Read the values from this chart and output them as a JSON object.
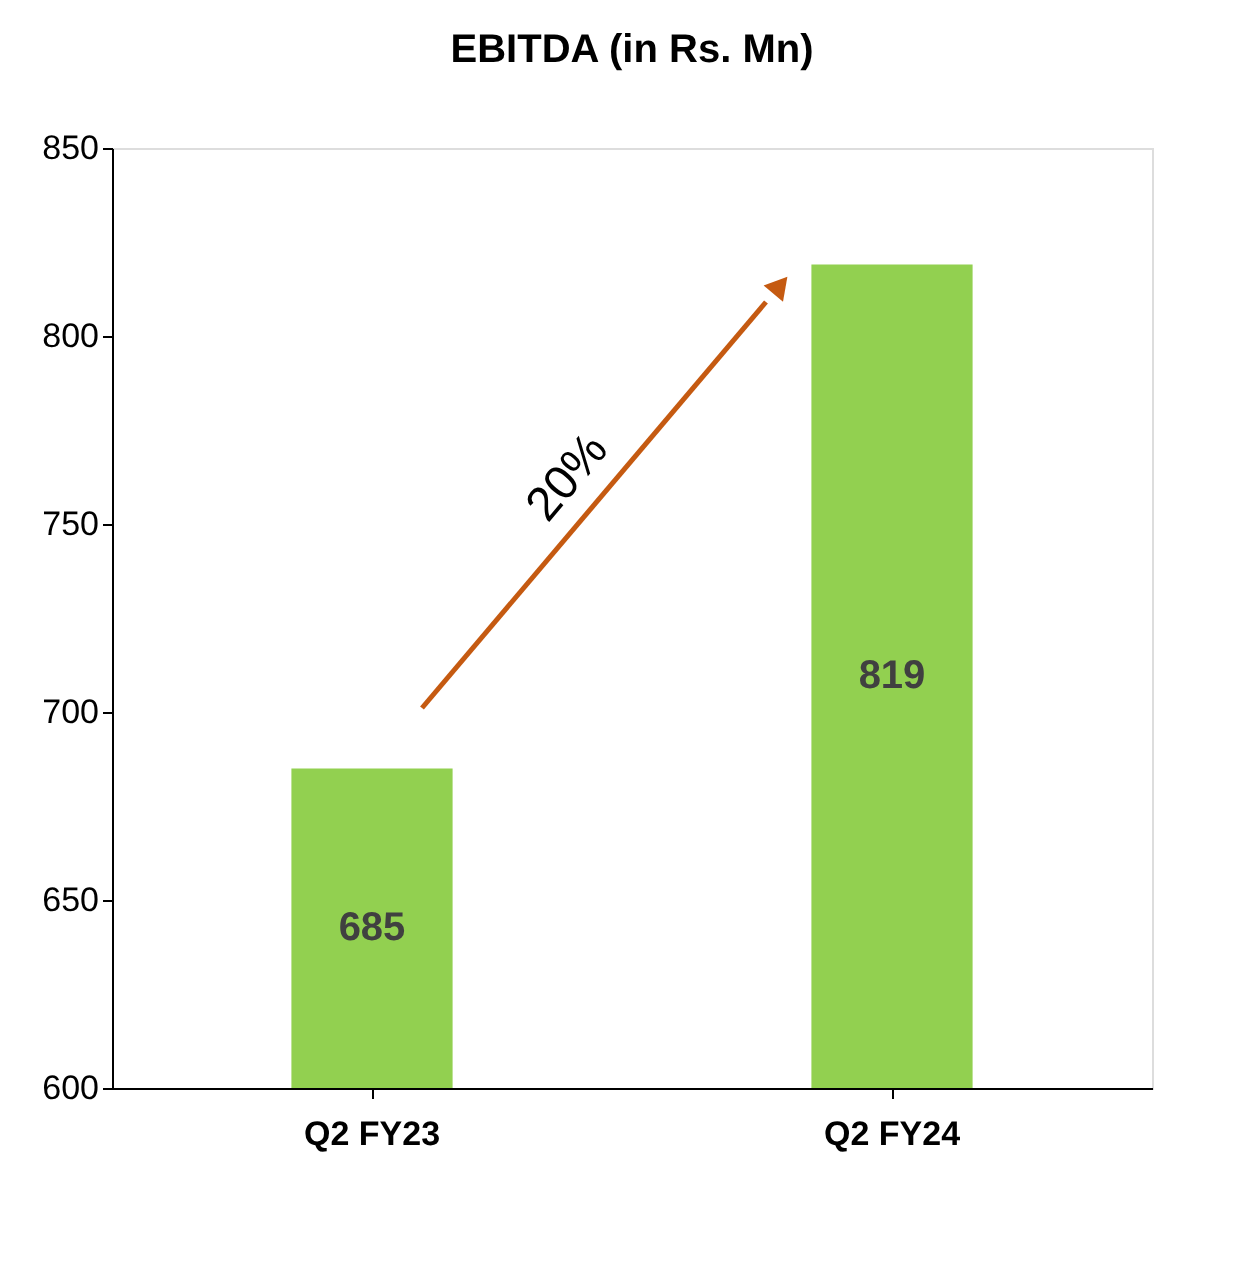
{
  "chart_data": {
    "type": "bar",
    "title": "EBITDA (in Rs. Mn)",
    "categories": [
      "Q2 FY23",
      "Q2 FY24"
    ],
    "values": [
      685,
      819
    ],
    "color": "#92d050",
    "ylim": [
      600,
      850
    ],
    "yticks": [
      600,
      650,
      700,
      750,
      800,
      850
    ],
    "grid": false,
    "data_labels": true,
    "annotations": [
      "20%"
    ]
  }
}
